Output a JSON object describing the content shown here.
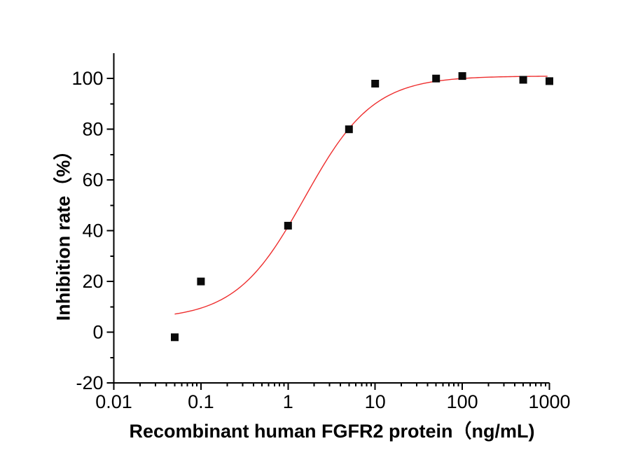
{
  "chart_data": {
    "type": "scatter",
    "subtype": "dose-response curve with sigmoidal fit",
    "title": "",
    "xlabel": "Recombinant human FGFR2 protein（ng/mL)",
    "ylabel": "Inhibition rate（%）",
    "x_scale": "log",
    "xlim_log10": [
      -2,
      3
    ],
    "x_ticks": [
      0.01,
      0.1,
      1,
      10,
      100,
      1000
    ],
    "x_tick_labels": [
      "0.01",
      "0.1",
      "1",
      "10",
      "100",
      "1000"
    ],
    "x_minor_ticks_pattern": [
      2,
      3,
      4,
      5,
      6,
      7,
      8,
      9
    ],
    "ylim": [
      -20,
      110
    ],
    "y_ticks": [
      -20,
      0,
      20,
      40,
      60,
      80,
      100
    ],
    "y_tick_labels": [
      "-20",
      "0",
      "20",
      "40",
      "60",
      "80",
      "100"
    ],
    "y_minor_ticks": [
      -10,
      10,
      30,
      50,
      70,
      90
    ],
    "grid": "off",
    "legend": "none",
    "points": [
      {
        "x": 0.05,
        "y": -2
      },
      {
        "x": 0.1,
        "y": 20
      },
      {
        "x": 1,
        "y": 42
      },
      {
        "x": 5,
        "y": 80
      },
      {
        "x": 10,
        "y": 98
      },
      {
        "x": 50,
        "y": 100
      },
      {
        "x": 100,
        "y": 101
      },
      {
        "x": 500,
        "y": 99.5
      },
      {
        "x": 1000,
        "y": 99
      }
    ],
    "fit_curve": {
      "model": "4PL-logistic",
      "bottom": 5,
      "top": 101,
      "ec50": 1.55,
      "hill": 1.1,
      "x_start": 0.05,
      "x_end": 950
    },
    "marker": {
      "shape": "square",
      "size": 11,
      "color": "#0a0a0a"
    },
    "colors": {
      "curve": "#ee2e2e",
      "axis": "#000000",
      "text": "#000000",
      "background": "#ffffff"
    }
  }
}
